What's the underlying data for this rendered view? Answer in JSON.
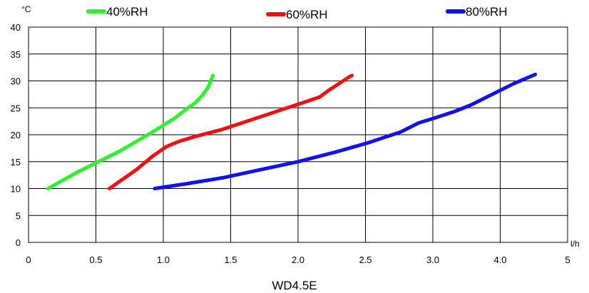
{
  "chart_data": {
    "type": "line",
    "title": "WD4.5E",
    "xlabel": "l/h",
    "ylabel": "°C",
    "xlim": [
      0,
      5
    ],
    "ylim": [
      0,
      40
    ],
    "x_ticks": [
      "0",
      "0.5",
      "1.0",
      "1.5",
      "2.0",
      "2.5",
      "3.0",
      "4.0",
      "5"
    ],
    "y_ticks": [
      "0",
      "5",
      "10",
      "15",
      "20",
      "25",
      "30",
      "35",
      "40"
    ],
    "grid": true,
    "legend_position": "top",
    "series": [
      {
        "name": "40%RH",
        "color": "#33ee33",
        "points": [
          [
            0.18,
            10
          ],
          [
            0.45,
            13
          ],
          [
            0.85,
            17
          ],
          [
            1.15,
            20.5
          ],
          [
            1.35,
            23
          ],
          [
            1.48,
            25
          ],
          [
            1.55,
            26
          ],
          [
            1.62,
            27.5
          ],
          [
            1.67,
            29
          ],
          [
            1.71,
            31
          ]
        ]
      },
      {
        "name": "60%RH",
        "color": "#ee1111",
        "points": [
          [
            0.75,
            10
          ],
          [
            1.0,
            13.5
          ],
          [
            1.15,
            16
          ],
          [
            1.28,
            17.8
          ],
          [
            1.4,
            18.8
          ],
          [
            1.55,
            19.7
          ],
          [
            1.8,
            21
          ],
          [
            2.1,
            23
          ],
          [
            2.4,
            25
          ],
          [
            2.55,
            26
          ],
          [
            2.7,
            27
          ],
          [
            2.78,
            28.2
          ],
          [
            2.88,
            29.5
          ],
          [
            2.97,
            30.7
          ],
          [
            3.0,
            31
          ]
        ]
      },
      {
        "name": "80%RH",
        "color": "#1111ee",
        "points": [
          [
            1.17,
            10
          ],
          [
            1.5,
            11
          ],
          [
            1.8,
            12
          ],
          [
            2.15,
            13.5
          ],
          [
            2.5,
            15
          ],
          [
            2.85,
            16.8
          ],
          [
            3.15,
            18.5
          ],
          [
            3.45,
            20.5
          ],
          [
            3.62,
            22.2
          ],
          [
            3.75,
            23
          ],
          [
            3.95,
            24.3
          ],
          [
            4.1,
            25.5
          ],
          [
            4.3,
            27.5
          ],
          [
            4.5,
            29.5
          ],
          [
            4.7,
            31.2
          ]
        ]
      }
    ]
  }
}
